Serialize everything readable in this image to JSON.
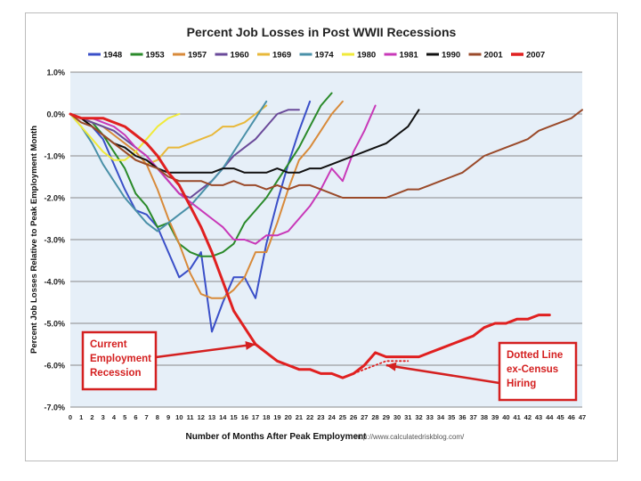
{
  "chart_data": {
    "type": "line",
    "title": "Percent Job Losses in Post WWII Recessions",
    "xlabel": "Number of Months After Peak Employment",
    "ylabel": "Percent Job Losses Relative to Peak Employment Month",
    "source_note": "http://www.calculatedriskblog.com/",
    "xlim": [
      0,
      47
    ],
    "ylim": [
      -7.0,
      1.0
    ],
    "x_ticks": [
      0,
      1,
      2,
      3,
      4,
      5,
      6,
      7,
      8,
      9,
      10,
      11,
      12,
      13,
      14,
      15,
      16,
      17,
      18,
      19,
      20,
      21,
      22,
      23,
      24,
      25,
      26,
      27,
      28,
      29,
      30,
      31,
      32,
      33,
      34,
      35,
      36,
      37,
      38,
      39,
      40,
      41,
      42,
      43,
      44,
      45,
      46,
      47
    ],
    "y_ticks": [
      1.0,
      0.0,
      -1.0,
      -2.0,
      -3.0,
      -4.0,
      -5.0,
      -6.0,
      -7.0
    ],
    "y_tick_labels": [
      "1.0%",
      "0.0%",
      "-1.0%",
      "-2.0%",
      "-3.0%",
      "-4.0%",
      "-5.0%",
      "-6.0%",
      "-7.0%"
    ],
    "grid": "horizontal",
    "legend_position": "top",
    "series": [
      {
        "name": "1948",
        "color": "#3a4fc8",
        "values": [
          0,
          -0.1,
          -0.3,
          -0.6,
          -1.2,
          -1.8,
          -2.3,
          -2.4,
          -2.7,
          -3.3,
          -3.9,
          -3.7,
          -3.3,
          -5.2,
          -4.5,
          -3.9,
          -3.9,
          -4.4,
          -3.1,
          -2.1,
          -1.2,
          -0.4,
          0.3
        ]
      },
      {
        "name": "1953",
        "color": "#2a8a2a",
        "values": [
          0,
          -0.1,
          -0.2,
          -0.5,
          -0.9,
          -1.3,
          -1.9,
          -2.2,
          -2.7,
          -2.6,
          -3.1,
          -3.3,
          -3.4,
          -3.4,
          -3.3,
          -3.1,
          -2.6,
          -2.3,
          -2.0,
          -1.6,
          -1.2,
          -0.8,
          -0.3,
          0.2,
          0.5
        ]
      },
      {
        "name": "1957",
        "color": "#d88a3a",
        "values": [
          0,
          -0.1,
          -0.2,
          -0.3,
          -0.5,
          -0.7,
          -0.9,
          -1.2,
          -1.8,
          -2.5,
          -3.1,
          -3.8,
          -4.3,
          -4.4,
          -4.4,
          -4.2,
          -3.9,
          -3.3,
          -3.3,
          -2.6,
          -1.8,
          -1.1,
          -0.8,
          -0.4,
          0.0,
          0.3
        ]
      },
      {
        "name": "1960",
        "color": "#6a4a9a",
        "values": [
          0,
          -0.1,
          -0.2,
          -0.3,
          -0.4,
          -0.6,
          -0.8,
          -1.0,
          -1.3,
          -1.6,
          -1.9,
          -2.0,
          -1.8,
          -1.6,
          -1.3,
          -1.0,
          -0.8,
          -0.6,
          -0.3,
          0.0,
          0.1,
          0.1
        ]
      },
      {
        "name": "1969",
        "color": "#e8b83a",
        "values": [
          0,
          -0.1,
          -0.3,
          -0.5,
          -0.7,
          -0.9,
          -1.1,
          -1.2,
          -1.1,
          -0.8,
          -0.8,
          -0.7,
          -0.6,
          -0.5,
          -0.3,
          -0.3,
          -0.2,
          0.0,
          0.2
        ]
      },
      {
        "name": "1974",
        "color": "#4a90a8",
        "values": [
          0,
          -0.3,
          -0.7,
          -1.2,
          -1.6,
          -2.0,
          -2.3,
          -2.6,
          -2.8,
          -2.6,
          -2.4,
          -2.2,
          -1.9,
          -1.6,
          -1.3,
          -0.9,
          -0.5,
          -0.1,
          0.3
        ]
      },
      {
        "name": "1980",
        "color": "#f0ea3a",
        "values": [
          0,
          -0.3,
          -0.6,
          -0.9,
          -1.1,
          -1.1,
          -0.9,
          -0.6,
          -0.3,
          -0.1,
          0.0
        ]
      },
      {
        "name": "1981",
        "color": "#c838b8",
        "values": [
          0,
          -0.1,
          -0.1,
          -0.2,
          -0.3,
          -0.5,
          -0.8,
          -1.0,
          -1.3,
          -1.6,
          -1.9,
          -2.1,
          -2.3,
          -2.5,
          -2.7,
          -3.0,
          -3.0,
          -3.1,
          -2.9,
          -2.9,
          -2.8,
          -2.5,
          -2.2,
          -1.8,
          -1.3,
          -1.6,
          -0.9,
          -0.4,
          0.2
        ]
      },
      {
        "name": "1990",
        "color": "#111111",
        "values": [
          0,
          -0.1,
          -0.3,
          -0.5,
          -0.7,
          -0.8,
          -1.0,
          -1.1,
          -1.3,
          -1.4,
          -1.4,
          -1.4,
          -1.4,
          -1.4,
          -1.3,
          -1.3,
          -1.4,
          -1.4,
          -1.4,
          -1.3,
          -1.4,
          -1.4,
          -1.3,
          -1.3,
          -1.2,
          -1.1,
          -1.0,
          -0.9,
          -0.8,
          -0.7,
          -0.5,
          -0.3,
          0.1
        ]
      },
      {
        "name": "2001",
        "color": "#9a4a2a",
        "values": [
          0,
          -0.2,
          -0.3,
          -0.5,
          -0.7,
          -0.9,
          -1.1,
          -1.2,
          -1.3,
          -1.5,
          -1.6,
          -1.6,
          -1.6,
          -1.7,
          -1.7,
          -1.6,
          -1.7,
          -1.7,
          -1.8,
          -1.7,
          -1.8,
          -1.7,
          -1.7,
          -1.8,
          -1.9,
          -2.0,
          -2.0,
          -2.0,
          -2.0,
          -2.0,
          -1.9,
          -1.8,
          -1.8,
          -1.7,
          -1.6,
          -1.5,
          -1.4,
          -1.2,
          -1.0,
          -0.9,
          -0.8,
          -0.7,
          -0.6,
          -0.4,
          -0.3,
          -0.2,
          -0.1,
          0.1
        ]
      },
      {
        "name": "2007",
        "color": "#e02020",
        "values": [
          0,
          -0.1,
          -0.1,
          -0.1,
          -0.2,
          -0.3,
          -0.5,
          -0.7,
          -1.0,
          -1.4,
          -1.7,
          -2.2,
          -2.7,
          -3.3,
          -4.0,
          -4.7,
          -5.1,
          -5.5,
          -5.7,
          -5.9,
          -6.0,
          -6.1,
          -6.1,
          -6.2,
          -6.2,
          -6.3,
          -6.2,
          -6.0,
          -5.7,
          -5.8,
          -5.8,
          -5.8,
          -5.8,
          -5.7,
          -5.6,
          -5.5,
          -5.4,
          -5.3,
          -5.1,
          -5.0,
          -5.0,
          -4.9,
          -4.9,
          -4.8,
          -4.8
        ]
      },
      {
        "name": "2007 ex-Census",
        "color": "#e02020",
        "dotted": true,
        "x_start": 25,
        "values": [
          -6.3,
          -6.2,
          -6.1,
          -6.0,
          -5.9,
          -5.9,
          -5.9
        ]
      }
    ],
    "annotations": [
      {
        "text_lines": [
          "Current",
          "Employment",
          "Recession"
        ],
        "points_to_x": 17,
        "points_to_y": -5.5
      },
      {
        "text_lines": [
          "Dotted Line",
          "ex-Census",
          "Hiring"
        ],
        "points_to_x": 29,
        "points_to_y": -6.0
      }
    ]
  }
}
